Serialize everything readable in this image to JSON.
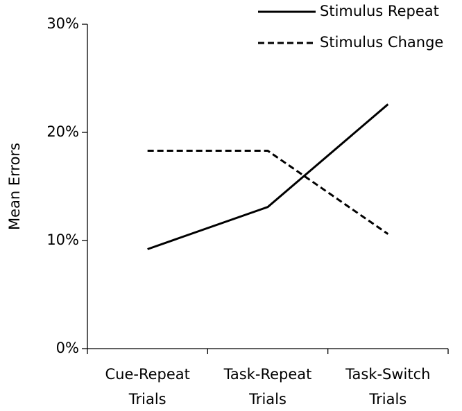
{
  "chart_data": {
    "type": "line",
    "ylabel": "Mean Errors",
    "categories": [
      "Cue-Repeat Trials",
      "Task-Repeat Trials",
      "Task-Switch Trials"
    ],
    "series": [
      {
        "name": "Stimulus Repeat",
        "color": "#000000",
        "style": "solid",
        "values": [
          9.2,
          13.1,
          22.6
        ]
      },
      {
        "name": "Stimulus Change",
        "color": "#000000",
        "style": "dashed",
        "values": [
          18.3,
          18.3,
          10.6
        ]
      }
    ],
    "ylim": [
      0,
      30
    ],
    "yticks": [
      {
        "value": 0,
        "label": "0%"
      },
      {
        "value": 10,
        "label": "10%"
      },
      {
        "value": 20,
        "label": "20%"
      },
      {
        "value": 30,
        "label": "30%"
      }
    ],
    "grid": false,
    "legend": "top-right"
  }
}
